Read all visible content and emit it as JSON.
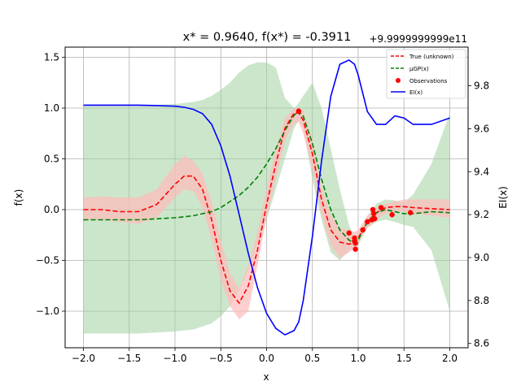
{
  "chart_data": {
    "type": "line",
    "title": "x* = 0.9640, f(x*) = -0.3911",
    "xlabel": "x",
    "ylabel": "f(x)",
    "y2label": "EI(x)",
    "y2_offset_label": "+9.9999999999e11",
    "xlim": [
      -2.2,
      2.2
    ],
    "ylim": [
      -1.36,
      1.6
    ],
    "y2lim": [
      8.58,
      9.98
    ],
    "x_ticks": [
      "−2.0",
      "−1.5",
      "−1.0",
      "−0.5",
      "0.0",
      "0.5",
      "1.0",
      "1.5",
      "2.0"
    ],
    "y_ticks": [
      "−1.0",
      "−0.5",
      "0.0",
      "0.5",
      "1.0",
      "1.5"
    ],
    "y2_ticks": [
      "8.6",
      "8.8",
      "9.0",
      "9.2",
      "9.4",
      "9.6",
      "9.8"
    ],
    "grid": true,
    "legend_placement": "top-right",
    "colors": {
      "true": "#ff0000",
      "gp_mean": "#008000",
      "observations": "#ff0000",
      "ei": "#0000ff",
      "true_band": "#ffbbbb",
      "gp_band": "#a3d1a3"
    },
    "x": [
      -2.0,
      -1.8,
      -1.6,
      -1.4,
      -1.2,
      -1.0,
      -0.9,
      -0.8,
      -0.7,
      -0.6,
      -0.5,
      -0.4,
      -0.3,
      -0.2,
      -0.1,
      0.0,
      0.1,
      0.2,
      0.3,
      0.35,
      0.4,
      0.5,
      0.6,
      0.7,
      0.8,
      0.9,
      0.96,
      1.0,
      1.1,
      1.2,
      1.3,
      1.4,
      1.5,
      1.6,
      1.8,
      2.0
    ],
    "series": [
      {
        "name": "True (unknown)",
        "kind": "line",
        "style": "dashed",
        "values": [
          0.0,
          0.0,
          -0.02,
          -0.02,
          0.05,
          0.25,
          0.33,
          0.33,
          0.2,
          -0.1,
          -0.5,
          -0.8,
          -0.92,
          -0.75,
          -0.4,
          0.05,
          0.45,
          0.8,
          0.95,
          0.95,
          0.88,
          0.55,
          0.1,
          -0.2,
          -0.32,
          -0.34,
          -0.32,
          -0.28,
          -0.12,
          -0.03,
          0.02,
          0.03,
          0.03,
          0.02,
          0.01,
          0.0
        ],
        "band_lower": [
          -0.1,
          -0.1,
          -0.12,
          -0.14,
          -0.08,
          0.12,
          0.2,
          0.18,
          0.02,
          -0.3,
          -0.7,
          -0.95,
          -1.08,
          -1.0,
          -0.55,
          -0.08,
          0.3,
          0.68,
          0.85,
          0.86,
          0.75,
          0.4,
          -0.05,
          -0.35,
          -0.48,
          -0.42,
          -0.38,
          -0.32,
          -0.18,
          -0.1,
          -0.04,
          -0.02,
          -0.02,
          -0.04,
          -0.06,
          -0.08
        ],
        "band_upper": [
          0.12,
          0.13,
          0.12,
          0.12,
          0.2,
          0.45,
          0.53,
          0.48,
          0.35,
          0.08,
          -0.3,
          -0.62,
          -0.78,
          -0.55,
          -0.22,
          0.2,
          0.6,
          0.9,
          1.0,
          1.0,
          0.98,
          0.7,
          0.22,
          -0.05,
          -0.18,
          -0.2,
          -0.22,
          -0.2,
          -0.06,
          0.02,
          0.06,
          0.08,
          0.1,
          0.1,
          0.1,
          0.1
        ]
      },
      {
        "name": "μGP(x)",
        "kind": "line",
        "style": "dashed",
        "values": [
          -0.1,
          -0.1,
          -0.1,
          -0.1,
          -0.09,
          -0.08,
          -0.07,
          -0.06,
          -0.04,
          -0.02,
          0.02,
          0.08,
          0.14,
          0.22,
          0.32,
          0.45,
          0.6,
          0.78,
          0.93,
          0.97,
          0.92,
          0.65,
          0.3,
          0.0,
          -0.2,
          -0.3,
          -0.33,
          -0.3,
          -0.12,
          -0.03,
          0.0,
          -0.02,
          -0.04,
          -0.04,
          -0.02,
          -0.03
        ],
        "band_lower": [
          -1.22,
          -1.22,
          -1.22,
          -1.22,
          -1.21,
          -1.2,
          -1.19,
          -1.18,
          -1.15,
          -1.12,
          -1.05,
          -0.95,
          -0.8,
          -0.6,
          -0.35,
          -0.1,
          0.2,
          0.5,
          0.8,
          0.88,
          0.8,
          0.3,
          -0.1,
          -0.42,
          -0.5,
          -0.4,
          -0.38,
          -0.35,
          -0.18,
          -0.12,
          -0.1,
          -0.12,
          -0.15,
          -0.17,
          -0.4,
          -1.0
        ],
        "band_upper": [
          1.02,
          1.02,
          1.02,
          1.02,
          1.03,
          1.04,
          1.05,
          1.06,
          1.08,
          1.12,
          1.18,
          1.25,
          1.35,
          1.42,
          1.45,
          1.45,
          1.4,
          1.1,
          1.0,
          1.05,
          1.12,
          1.25,
          1.0,
          0.6,
          0.2,
          -0.15,
          -0.27,
          -0.25,
          -0.06,
          0.06,
          0.1,
          0.09,
          0.07,
          0.15,
          0.45,
          0.95
        ]
      },
      {
        "name": "Observations",
        "kind": "scatter",
        "points": [
          [
            0.35,
            0.97
          ],
          [
            0.9,
            -0.23
          ],
          [
            0.96,
            -0.28
          ],
          [
            0.96,
            -0.31
          ],
          [
            0.97,
            -0.33
          ],
          [
            0.97,
            -0.39
          ],
          [
            1.05,
            -0.2
          ],
          [
            1.1,
            -0.12
          ],
          [
            1.15,
            -0.1
          ],
          [
            1.16,
            0.0
          ],
          [
            1.17,
            -0.04
          ],
          [
            1.18,
            -0.09
          ],
          [
            1.25,
            0.02
          ],
          [
            1.37,
            -0.05
          ],
          [
            1.57,
            -0.03
          ]
        ]
      },
      {
        "name": "EI(x)",
        "kind": "line",
        "style": "solid",
        "axis": "right",
        "values": [
          9.71,
          9.71,
          9.71,
          9.71,
          9.708,
          9.705,
          9.7,
          9.69,
          9.67,
          9.62,
          9.52,
          9.38,
          9.2,
          9.02,
          8.86,
          8.74,
          8.67,
          8.64,
          8.66,
          8.7,
          8.8,
          9.1,
          9.45,
          9.75,
          9.9,
          9.92,
          9.9,
          9.85,
          9.68,
          9.62,
          9.62,
          9.66,
          9.65,
          9.62,
          9.62,
          9.65
        ]
      }
    ]
  }
}
